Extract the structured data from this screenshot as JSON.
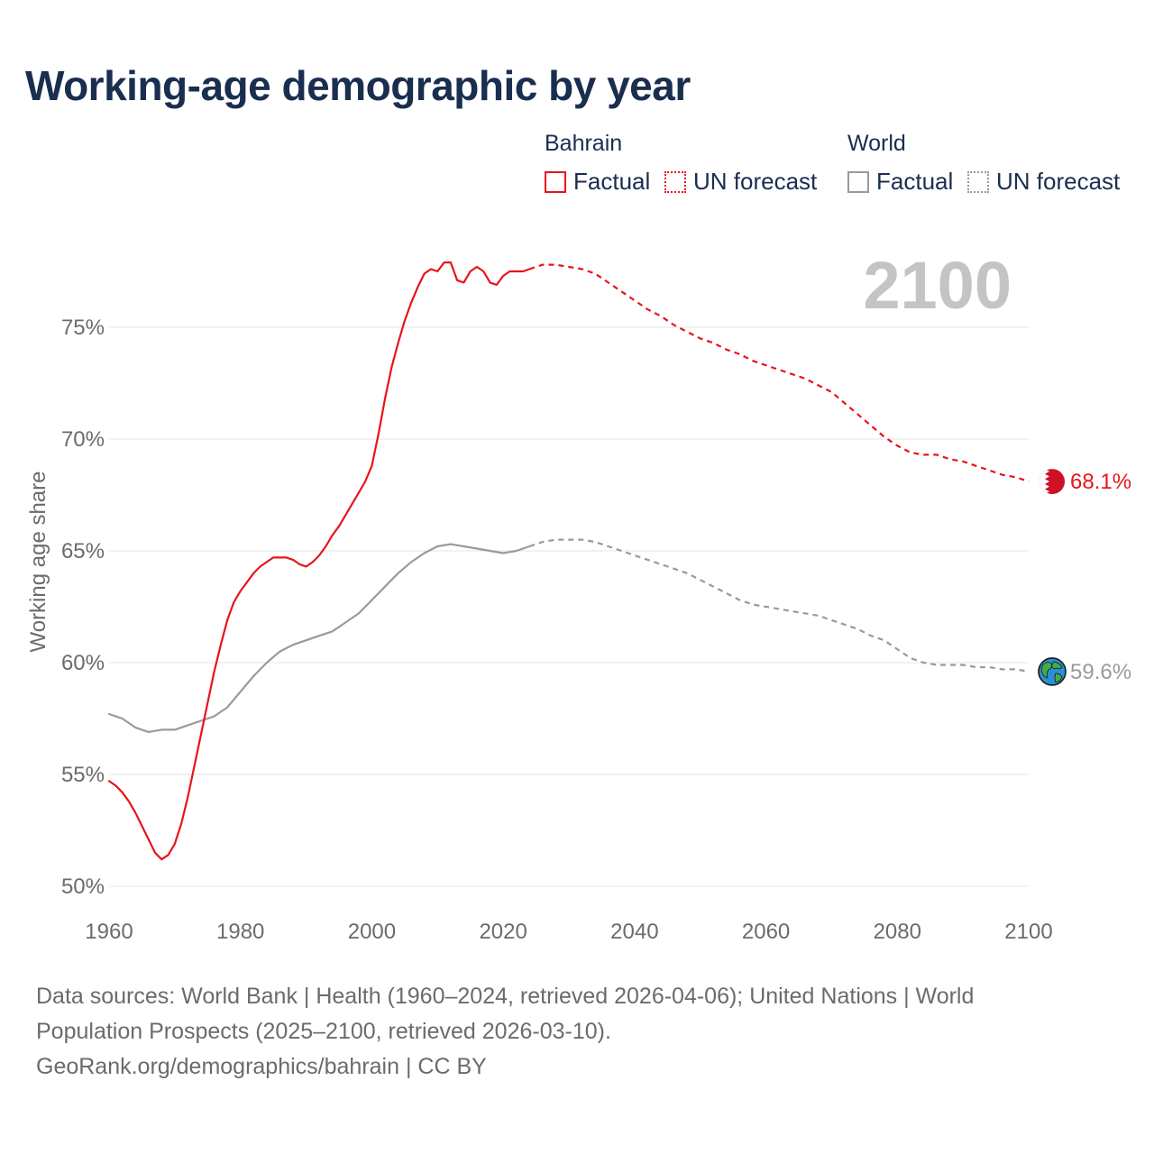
{
  "title": "Working-age demographic by year",
  "legend": {
    "groups": [
      {
        "name": "Bahrain",
        "items": [
          "Factual",
          "UN forecast"
        ]
      },
      {
        "name": "World",
        "items": [
          "Factual",
          "UN forecast"
        ]
      }
    ]
  },
  "colors": {
    "bahrain": "#e8141a",
    "world": "#9a9a9a",
    "year_label": "#c4c4c4",
    "grid": "#e6e6e6",
    "axis_text": "#6b6b6b"
  },
  "footer": {
    "line1": "Data sources: World Bank | Health (1960–2024, retrieved 2026-04-06); United Nations | World",
    "line2": "Population Prospects (2025–2100, retrieved 2026-03-10).",
    "line3": "GeoRank.org/demographics/bahrain | CC BY"
  },
  "chart_data": {
    "type": "line",
    "title": "Working-age demographic by year",
    "xlabel": "",
    "ylabel": "Working age share",
    "xlim": [
      1960,
      2100
    ],
    "ylim": [
      50,
      79
    ],
    "x_ticks": [
      1960,
      1980,
      2000,
      2020,
      2040,
      2060,
      2080,
      2100
    ],
    "x_tick_labels": [
      "1960",
      "1980",
      "2000",
      "2020",
      "2040",
      "2060",
      "2080",
      "2100"
    ],
    "y_ticks": [
      50,
      55,
      60,
      65,
      70,
      75
    ],
    "y_tick_labels": [
      "50%",
      "55%",
      "60%",
      "65%",
      "70%",
      "75%"
    ],
    "grid": true,
    "current_year_label": "2100",
    "series": [
      {
        "name": "Bahrain",
        "kind": "Factual",
        "style": "solid",
        "color": "#e8141a",
        "x": [
          1960,
          1961,
          1962,
          1963,
          1964,
          1965,
          1966,
          1967,
          1968,
          1969,
          1970,
          1971,
          1972,
          1973,
          1974,
          1975,
          1976,
          1977,
          1978,
          1979,
          1980,
          1981,
          1982,
          1983,
          1984,
          1985,
          1986,
          1987,
          1988,
          1989,
          1990,
          1991,
          1992,
          1993,
          1994,
          1995,
          1996,
          1997,
          1998,
          1999,
          2000,
          2001,
          2002,
          2003,
          2004,
          2005,
          2006,
          2007,
          2008,
          2009,
          2010,
          2011,
          2012,
          2013,
          2014,
          2015,
          2016,
          2017,
          2018,
          2019,
          2020,
          2021,
          2022,
          2023,
          2024
        ],
        "values": [
          54.7,
          54.5,
          54.2,
          53.8,
          53.3,
          52.7,
          52.1,
          51.5,
          51.2,
          51.4,
          51.9,
          52.8,
          54.0,
          55.4,
          56.8,
          58.2,
          59.6,
          60.8,
          61.9,
          62.7,
          63.2,
          63.6,
          64.0,
          64.3,
          64.5,
          64.7,
          64.7,
          64.7,
          64.6,
          64.4,
          64.3,
          64.5,
          64.8,
          65.2,
          65.7,
          66.1,
          66.6,
          67.1,
          67.6,
          68.1,
          68.8,
          70.2,
          71.8,
          73.2,
          74.3,
          75.3,
          76.1,
          76.8,
          77.4,
          77.6,
          77.5,
          77.9,
          77.9,
          77.1,
          77.0,
          77.5,
          77.7,
          77.5,
          77.0,
          76.9,
          77.3,
          77.5,
          77.5,
          77.5,
          77.6
        ]
      },
      {
        "name": "Bahrain",
        "kind": "UN forecast",
        "style": "dashed",
        "color": "#e8141a",
        "x": [
          2024,
          2026,
          2028,
          2030,
          2032,
          2034,
          2036,
          2038,
          2040,
          2042,
          2044,
          2046,
          2048,
          2050,
          2052,
          2054,
          2056,
          2058,
          2060,
          2062,
          2064,
          2066,
          2068,
          2070,
          2072,
          2074,
          2076,
          2078,
          2080,
          2082,
          2084,
          2086,
          2088,
          2090,
          2092,
          2094,
          2096,
          2098,
          2100
        ],
        "values": [
          77.6,
          77.8,
          77.8,
          77.7,
          77.6,
          77.4,
          77.0,
          76.6,
          76.2,
          75.8,
          75.5,
          75.1,
          74.8,
          74.5,
          74.3,
          74.0,
          73.8,
          73.5,
          73.3,
          73.1,
          72.9,
          72.7,
          72.4,
          72.1,
          71.6,
          71.1,
          70.6,
          70.1,
          69.7,
          69.4,
          69.3,
          69.3,
          69.1,
          69.0,
          68.8,
          68.6,
          68.4,
          68.3,
          68.1
        ]
      },
      {
        "name": "World",
        "kind": "Factual",
        "style": "solid",
        "color": "#9a9a9a",
        "x": [
          1960,
          1962,
          1964,
          1966,
          1968,
          1970,
          1972,
          1974,
          1976,
          1978,
          1980,
          1982,
          1984,
          1986,
          1988,
          1990,
          1992,
          1994,
          1996,
          1998,
          2000,
          2002,
          2004,
          2006,
          2008,
          2010,
          2012,
          2014,
          2016,
          2018,
          2020,
          2022,
          2024
        ],
        "values": [
          57.7,
          57.5,
          57.1,
          56.9,
          57.0,
          57.0,
          57.2,
          57.4,
          57.6,
          58.0,
          58.7,
          59.4,
          60.0,
          60.5,
          60.8,
          61.0,
          61.2,
          61.4,
          61.8,
          62.2,
          62.8,
          63.4,
          64.0,
          64.5,
          64.9,
          65.2,
          65.3,
          65.2,
          65.1,
          65.0,
          64.9,
          65.0,
          65.2
        ]
      },
      {
        "name": "World",
        "kind": "UN forecast",
        "style": "dashed",
        "color": "#9a9a9a",
        "x": [
          2024,
          2026,
          2028,
          2030,
          2032,
          2034,
          2036,
          2038,
          2040,
          2042,
          2044,
          2046,
          2048,
          2050,
          2052,
          2054,
          2056,
          2058,
          2060,
          2062,
          2064,
          2066,
          2068,
          2070,
          2072,
          2074,
          2076,
          2078,
          2080,
          2082,
          2084,
          2086,
          2088,
          2090,
          2092,
          2094,
          2096,
          2098,
          2100
        ],
        "values": [
          65.2,
          65.4,
          65.5,
          65.5,
          65.5,
          65.4,
          65.2,
          65.0,
          64.8,
          64.6,
          64.4,
          64.2,
          64.0,
          63.7,
          63.4,
          63.1,
          62.8,
          62.6,
          62.5,
          62.4,
          62.3,
          62.2,
          62.1,
          61.9,
          61.7,
          61.5,
          61.2,
          61.0,
          60.6,
          60.2,
          60.0,
          59.9,
          59.9,
          59.9,
          59.8,
          59.8,
          59.7,
          59.7,
          59.6
        ]
      }
    ],
    "end_labels": [
      {
        "name": "Bahrain",
        "text": "68.1%",
        "value": 68.1,
        "color": "#e8141a"
      },
      {
        "name": "World",
        "text": "59.6%",
        "value": 59.6,
        "color": "#9a9a9a"
      }
    ]
  }
}
